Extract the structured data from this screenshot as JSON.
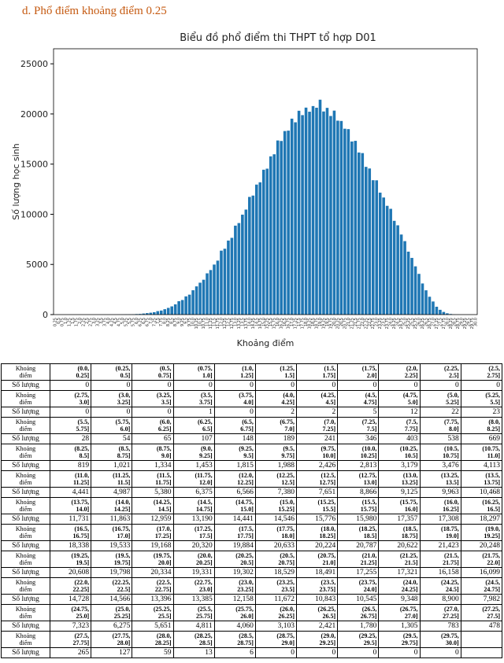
{
  "heading": "d.  Phổ điểm khoảng điểm 0.25",
  "chart_data": {
    "type": "bar",
    "title": "Biểu đồ phổ điểm thi THPT tổ hợp D01",
    "x_label": "Khoảng điểm",
    "y_label": "Số lượng học sinh",
    "color": "#1f77b4",
    "categories": [
      "0.25",
      "0.5",
      "0.75",
      "1.0",
      "1.25",
      "1.5",
      "1.75",
      "2.0",
      "2.25",
      "2.5",
      "2.75",
      "3.0",
      "3.25",
      "3.5",
      "3.75",
      "4.0",
      "4.25",
      "4.5",
      "4.75",
      "5.0",
      "5.25",
      "5.5",
      "5.75",
      "6.0",
      "6.25",
      "6.5",
      "6.75",
      "7.0",
      "7.25",
      "7.5",
      "7.75",
      "8.0",
      "8.25",
      "8.5",
      "8.75",
      "9.0",
      "9.25",
      "9.5",
      "9.75",
      "10.0",
      "10.25",
      "10.5",
      "10.75",
      "11.0",
      "11.25",
      "11.5",
      "11.75",
      "12.0",
      "12.25",
      "12.5",
      "12.75",
      "13.0",
      "13.25",
      "13.5",
      "13.75",
      "14.0",
      "14.25",
      "14.5",
      "14.75",
      "15.0",
      "15.25",
      "15.5",
      "15.75",
      "16.0",
      "16.25",
      "16.5",
      "16.75",
      "17.0",
      "17.25",
      "17.5",
      "17.75",
      "18.0",
      "18.25",
      "18.5",
      "18.75",
      "19.0",
      "19.25",
      "19.5",
      "19.75",
      "20.0",
      "20.25",
      "20.5",
      "20.75",
      "21.0",
      "21.25",
      "21.5",
      "21.75",
      "22.0",
      "22.25",
      "22.5",
      "22.75",
      "23.0",
      "23.25",
      "23.5",
      "23.75",
      "24.0",
      "24.25",
      "24.5",
      "24.75",
      "25.0",
      "25.25",
      "25.5",
      "25.75",
      "26.0",
      "26.25",
      "26.5",
      "26.75",
      "27.0",
      "27.25",
      "27.5",
      "27.75",
      "28.0",
      "28.25",
      "28.5",
      "28.75",
      "29.0",
      "29.25",
      "29.5",
      "29.75",
      "30.0"
    ],
    "values": [
      0,
      0,
      0,
      0,
      0,
      0,
      0,
      0,
      0,
      0,
      0,
      0,
      0,
      0,
      1,
      0,
      2,
      2,
      5,
      12,
      22,
      23,
      28,
      54,
      65,
      107,
      148,
      189,
      241,
      346,
      403,
      538,
      669,
      819,
      1021,
      1334,
      1453,
      1815,
      1988,
      2426,
      2813,
      3179,
      3476,
      4113,
      4441,
      4987,
      5380,
      6375,
      6566,
      7380,
      7651,
      8866,
      9125,
      9963,
      10468,
      11731,
      11863,
      12959,
      13190,
      14441,
      14546,
      15776,
      15980,
      17357,
      17308,
      18297,
      18338,
      19533,
      19168,
      20320,
      19884,
      20633,
      20224,
      20787,
      20622,
      21423,
      20248,
      20608,
      19798,
      20334,
      19331,
      19302,
      18529,
      18491,
      17255,
      17321,
      16158,
      16099,
      14728,
      14566,
      13396,
      13385,
      12158,
      11672,
      10843,
      10545,
      9348,
      8900,
      7982,
      7323,
      6275,
      5651,
      4811,
      4060,
      3103,
      2421,
      1780,
      1305,
      783,
      478,
      265,
      127,
      59,
      13,
      6,
      0,
      0,
      0,
      0,
      0
    ],
    "ylim": [
      0,
      26500
    ],
    "yticks": [
      0,
      5000,
      10000,
      15000,
      20000,
      25000
    ]
  },
  "table": {
    "interval_header": "Khoảng điểm",
    "count_header": "Số lượng",
    "rows": [
      {
        "intervals": [
          "(0.0, 0.25]",
          "(0.25, 0.5]",
          "(0.5, 0.75]",
          "(0.75, 1.0]",
          "(1.0, 1.25]",
          "(1.25, 1.5]",
          "(1.5, 1.75]",
          "(1.75, 2.0]",
          "(2.0, 2.25]",
          "(2.25, 2.5]",
          "(2.5, 2.75]"
        ],
        "counts": [
          "0",
          "0",
          "0",
          "0",
          "0",
          "0",
          "0",
          "0",
          "0",
          "0",
          "0"
        ]
      },
      {
        "intervals": [
          "(2.75, 3.0]",
          "(3.0, 3.25]",
          "(3.25, 3.5]",
          "(3.5, 3.75]",
          "(3.75, 4.0]",
          "(4.0, 4.25]",
          "(4.25, 4.5]",
          "(4.5, 4.75]",
          "(4.75, 5.0]",
          "(5.0, 5.25]",
          "(5.25, 5.5]"
        ],
        "counts": [
          "0",
          "0",
          "0",
          "1",
          "0",
          "2",
          "2",
          "5",
          "12",
          "22",
          "23"
        ]
      },
      {
        "intervals": [
          "(5.5, 5.75]",
          "(5.75, 6.0]",
          "(6.0, 6.25]",
          "(6.25, 6.5]",
          "(6.5, 6.75]",
          "(6.75, 7.0]",
          "(7.0, 7.25]",
          "(7.25, 7.5]",
          "(7.5, 7.75]",
          "(7.75, 8.0]",
          "(8.0, 8.25]"
        ],
        "counts": [
          "28",
          "54",
          "65",
          "107",
          "148",
          "189",
          "241",
          "346",
          "403",
          "538",
          "669"
        ]
      },
      {
        "intervals": [
          "(8.25, 8.5]",
          "(8.5, 8.75]",
          "(8.75, 9.0]",
          "(9.0, 9.25]",
          "(9.25, 9.5]",
          "(9.5, 9.75]",
          "(9.75, 10.0]",
          "(10.0, 10.25]",
          "(10.25, 10.5]",
          "(10.5, 10.75]",
          "(10.75, 11.0]"
        ],
        "counts": [
          "819",
          "1,021",
          "1,334",
          "1,453",
          "1,815",
          "1,988",
          "2,426",
          "2,813",
          "3,179",
          "3,476",
          "4,113"
        ]
      },
      {
        "intervals": [
          "(11.0, 11.25]",
          "(11.25, 11.5]",
          "(11.5, 11.75]",
          "(11.75, 12.0]",
          "(12.0, 12.25]",
          "(12.25, 12.5]",
          "(12.5, 12.75]",
          "(12.75, 13.0]",
          "(13.0, 13.25]",
          "(13.25, 13.5]",
          "(13.5, 13.75]"
        ],
        "counts": [
          "4,441",
          "4,987",
          "5,380",
          "6,375",
          "6,566",
          "7,380",
          "7,651",
          "8,866",
          "9,125",
          "9,963",
          "10,468"
        ]
      },
      {
        "intervals": [
          "(13.75, 14.0]",
          "(14.0, 14.25]",
          "(14.25, 14.5]",
          "(14.5, 14.75]",
          "(14.75, 15.0]",
          "(15.0, 15.25]",
          "(15.25, 15.5]",
          "(15.5, 15.75]",
          "(15.75, 16.0]",
          "(16.0, 16.25]",
          "(16.25, 16.5]"
        ],
        "counts": [
          "11,731",
          "11,863",
          "12,959",
          "13,190",
          "14,441",
          "14,546",
          "15,776",
          "15,980",
          "17,357",
          "17,308",
          "18,297"
        ]
      },
      {
        "intervals": [
          "(16.5, 16.75]",
          "(16.75, 17.0]",
          "(17.0, 17.25]",
          "(17.25, 17.5]",
          "(17.5, 17.75]",
          "(17.75, 18.0]",
          "(18.0, 18.25]",
          "(18.25, 18.5]",
          "(18.5, 18.75]",
          "(18.75, 19.0]",
          "(19.0, 19.25]"
        ],
        "counts": [
          "18,338",
          "19,533",
          "19,168",
          "20,320",
          "19,884",
          "20,633",
          "20,224",
          "20,787",
          "20,622",
          "21,423",
          "20,248"
        ]
      },
      {
        "intervals": [
          "(19.25, 19.5]",
          "(19.5, 19.75]",
          "(19.75, 20.0]",
          "(20.0, 20.25]",
          "(20.25, 20.5]",
          "(20.5, 20.75]",
          "(20.75, 21.0]",
          "(21.0, 21.25]",
          "(21.25, 21.5]",
          "(21.5, 21.75]",
          "(21.75, 22.0]"
        ],
        "counts": [
          "20,608",
          "19,798",
          "20,334",
          "19,331",
          "19,302",
          "18,529",
          "18,491",
          "17,255",
          "17,321",
          "16,158",
          "16,099"
        ]
      },
      {
        "intervals": [
          "(22.0, 22.25]",
          "(22.25, 22.5]",
          "(22.5, 22.75]",
          "(22.75, 23.0]",
          "(23.0, 23.25]",
          "(23.25, 23.5]",
          "(23.5, 23.75]",
          "(23.75, 24.0]",
          "(24.0, 24.25]",
          "(24.25, 24.5]",
          "(24.5, 24.75]"
        ],
        "counts": [
          "14,728",
          "14,566",
          "13,396",
          "13,385",
          "12,158",
          "11,672",
          "10,843",
          "10,545",
          "9,348",
          "8,900",
          "7,982"
        ]
      },
      {
        "intervals": [
          "(24.75, 25.0]",
          "(25.0, 25.25]",
          "(25.25, 25.5]",
          "(25.5, 25.75]",
          "(25.75, 26.0]",
          "(26.0, 26.25]",
          "(26.25, 26.5]",
          "(26.5, 26.75]",
          "(26.75, 27.0]",
          "(27.0, 27.25]",
          "(27.25, 27.5]"
        ],
        "counts": [
          "7,323",
          "6,275",
          "5,651",
          "4,811",
          "4,060",
          "3,103",
          "2,421",
          "1,780",
          "1,305",
          "783",
          "478"
        ]
      },
      {
        "intervals": [
          "(27.5, 27.75]",
          "(27.75, 28.0]",
          "(28.0, 28.25]",
          "(28.25, 28.5]",
          "(28.5, 28.75]",
          "(28.75, 29.0]",
          "(29.0, 29.25]",
          "(29.25, 29.5]",
          "(29.5, 29.75]",
          "(29.75, 30.0]"
        ],
        "counts": [
          "265",
          "127",
          "59",
          "13",
          "6",
          "0",
          "0",
          "0",
          "0",
          "0"
        ]
      }
    ]
  }
}
